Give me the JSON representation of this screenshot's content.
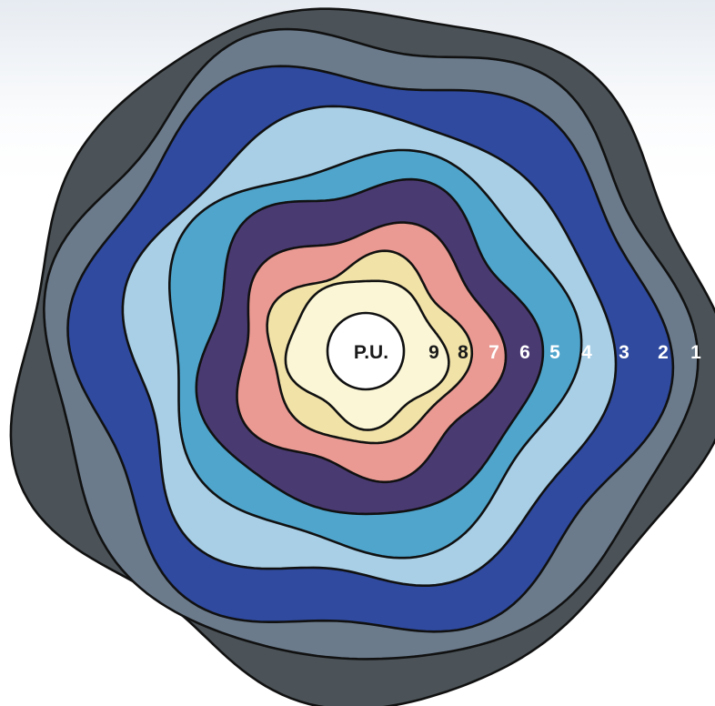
{
  "center_label": "P.U.",
  "rings": [
    {
      "label": "1",
      "color": "#4b5358",
      "label_color": "#ffffff"
    },
    {
      "label": "2",
      "color": "#6b7b8c",
      "label_color": "#ffffff"
    },
    {
      "label": "3",
      "color": "#2f4a9e",
      "label_color": "#ffffff"
    },
    {
      "label": "4",
      "color": "#a8cfe6",
      "label_color": "#ffffff"
    },
    {
      "label": "5",
      "color": "#4fa5cc",
      "label_color": "#ffffff"
    },
    {
      "label": "6",
      "color": "#4a3a72",
      "label_color": "#ffffff"
    },
    {
      "label": "7",
      "color": "#ea9a92",
      "label_color": "#ffffff"
    },
    {
      "label": "8",
      "color": "#f1e2a8",
      "label_color": "#1a1a1a"
    },
    {
      "label": "9",
      "color": "#faf6d6",
      "label_color": "#1a1a1a"
    }
  ],
  "center_color": "#ffffff"
}
